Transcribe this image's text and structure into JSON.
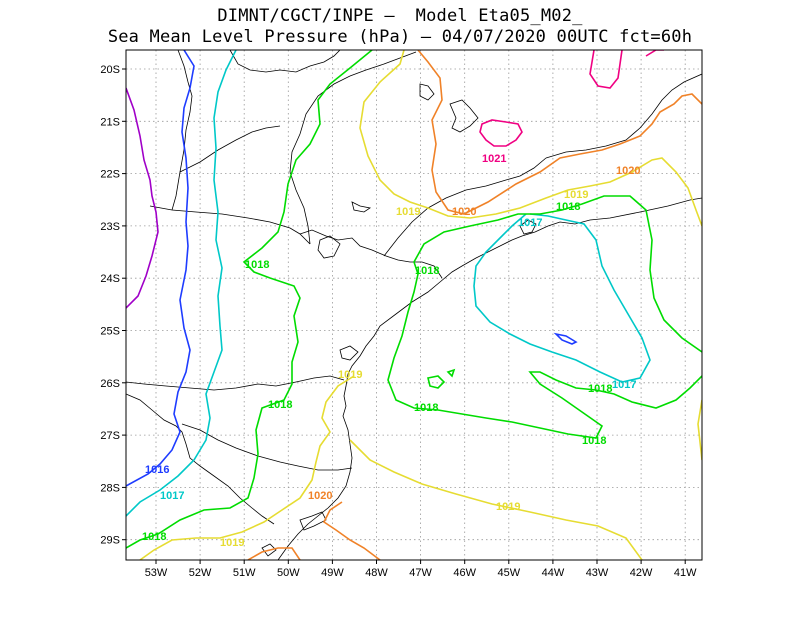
{
  "title_line1": "DIMNT/CGCT/INPE –  Model Eta05_M02_",
  "title_line2": "Sea Mean Level Pressure (hPa) – 04/07/2020 00UTC fct=60h",
  "lat_ticks": [
    "20S",
    "21S",
    "22S",
    "23S",
    "24S",
    "25S",
    "26S",
    "27S",
    "28S",
    "29S"
  ],
  "lon_ticks": [
    "53W",
    "52W",
    "51W",
    "50W",
    "49W",
    "48W",
    "47W",
    "46W",
    "45W",
    "44W",
    "43W",
    "42W",
    "41W"
  ],
  "grid": true,
  "isobar_colors": {
    "1015": "#a000c8",
    "1016": "#1e3cff",
    "1017": "#00c8c8",
    "1018": "#00dc00",
    "1019": "#e6dc32",
    "1020": "#f08228",
    "1021": "#f00082"
  },
  "contour_labels": [
    {
      "text": "1016",
      "level": "1016"
    },
    {
      "text": "1017",
      "level": "1017"
    },
    {
      "text": "1017",
      "level": "1017"
    },
    {
      "text": "1017",
      "level": "1017"
    },
    {
      "text": "1018",
      "level": "1018"
    },
    {
      "text": "1018",
      "level": "1018"
    },
    {
      "text": "1018",
      "level": "1018"
    },
    {
      "text": "1018",
      "level": "1018"
    },
    {
      "text": "1018",
      "level": "1018"
    },
    {
      "text": "1018",
      "level": "1018"
    },
    {
      "text": "1018",
      "level": "1018"
    },
    {
      "text": "1018",
      "level": "1018"
    },
    {
      "text": "1019",
      "level": "1019"
    },
    {
      "text": "1019",
      "level": "1019"
    },
    {
      "text": "1019",
      "level": "1019"
    },
    {
      "text": "1019",
      "level": "1019"
    },
    {
      "text": "1019",
      "level": "1019"
    },
    {
      "text": "1020",
      "level": "1020"
    },
    {
      "text": "1020",
      "level": "1020"
    },
    {
      "text": "1020",
      "level": "1020"
    },
    {
      "text": "1021",
      "level": "1021"
    }
  ]
}
